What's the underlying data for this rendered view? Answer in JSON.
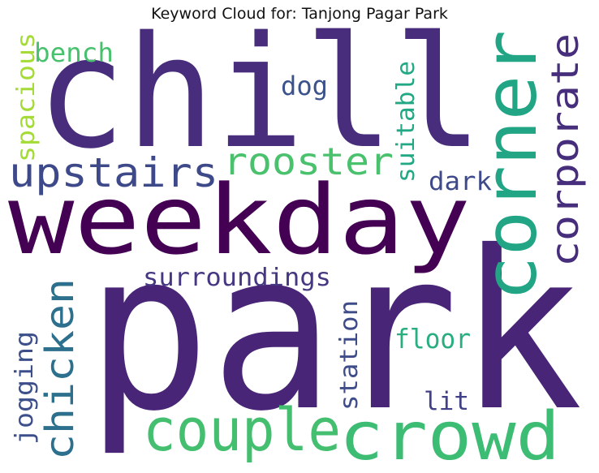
{
  "title": "Keyword Cloud for: Tanjong Pagar Park",
  "words": {
    "park": {
      "text": "park",
      "color": "#482576"
    },
    "chill": {
      "text": "chill",
      "color": "#472d7b"
    },
    "weekday": {
      "text": "weekday",
      "color": "#440154"
    },
    "corner": {
      "text": "corner",
      "color": "#21a585"
    },
    "crowd": {
      "text": "crowd",
      "color": "#3dbc74"
    },
    "couple": {
      "text": "couple",
      "color": "#44bf70"
    },
    "corporate": {
      "text": "corporate",
      "color": "#472e7c"
    },
    "upstairs": {
      "text": "upstairs",
      "color": "#3e4989"
    },
    "rooster": {
      "text": "rooster",
      "color": "#4ac16d"
    },
    "chicken": {
      "text": "chicken",
      "color": "#2d708e"
    },
    "surroundings": {
      "text": "surroundings",
      "color": "#453781"
    },
    "bench": {
      "text": "bench",
      "color": "#48c16e"
    },
    "spacious": {
      "text": "spacious",
      "color": "#a5db36"
    },
    "dog": {
      "text": "dog",
      "color": "#3b528b"
    },
    "suitable": {
      "text": "suitable",
      "color": "#22a884"
    },
    "dark": {
      "text": "dark",
      "color": "#3e4a89"
    },
    "floor": {
      "text": "floor",
      "color": "#29af7f"
    },
    "station": {
      "text": "station",
      "color": "#3e4c8a"
    },
    "lit": {
      "text": "lit",
      "color": "#424086"
    },
    "jogging": {
      "text": "jogging",
      "color": "#3c4f8a"
    }
  }
}
